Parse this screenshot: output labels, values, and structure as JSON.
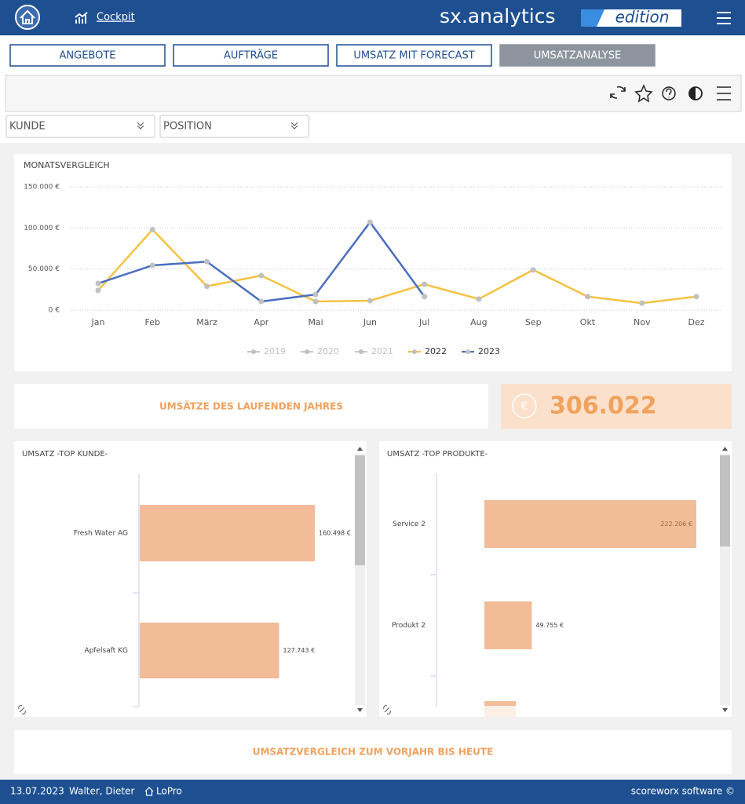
{
  "header": {
    "nav_link": "Cockpit",
    "brand": "sx.analytics",
    "edition": "edition"
  },
  "tabs": [
    "ANGEBOTE",
    "AUFTRÄGE",
    "UMSATZ MIT FORECAST",
    "UMSATZANALYSE"
  ],
  "filters": [
    "KUNDE",
    "POSITION"
  ],
  "monthly_chart": {
    "type": "line",
    "title": "MONATSVERGLEICH",
    "categories": [
      "Jan",
      "Feb",
      "März",
      "Apr",
      "Mai",
      "Jun",
      "Jul",
      "Aug",
      "Sep",
      "Okt",
      "Nov",
      "Dez"
    ],
    "series": [
      {
        "name": "2019",
        "color": "#c8c8c8",
        "values": [
          null,
          null,
          null,
          null,
          null,
          null,
          null,
          null,
          null,
          null,
          null,
          null
        ]
      },
      {
        "name": "2020",
        "color": "#c8c8c8",
        "values": [
          null,
          null,
          null,
          null,
          null,
          null,
          null,
          null,
          null,
          null,
          null,
          null
        ]
      },
      {
        "name": "2021",
        "color": "#c8c8c8",
        "values": [
          null,
          null,
          null,
          null,
          null,
          null,
          null,
          null,
          null,
          null,
          null,
          null
        ]
      },
      {
        "name": "2022",
        "color": "#f5c242",
        "values": [
          24000,
          98000,
          29000,
          42000,
          10500,
          11500,
          31500,
          13500,
          49000,
          16500,
          8500,
          16500
        ]
      },
      {
        "name": "2023",
        "color": "#4a6fc0",
        "values": [
          32500,
          54500,
          59000,
          10500,
          19000,
          107000,
          16500,
          null,
          null,
          null,
          null,
          null
        ]
      }
    ],
    "ylim": [
      0,
      150000
    ],
    "yticks": [
      {
        "value": 0,
        "label": "0 €"
      },
      {
        "value": 50000,
        "label": "50.000 €"
      },
      {
        "value": 100000,
        "label": "100.000 €"
      },
      {
        "value": 150000,
        "label": "150.000 €"
      }
    ],
    "grid": true
  },
  "kpi": {
    "label": "UMSÄTZE DES LAUFENDEN JAHRES",
    "icon": "€",
    "value": "306.022"
  },
  "customer_chart": {
    "type": "bar",
    "title": "UMSATZ -TOP KUNDE-",
    "categories": [
      "Fresh Water AG",
      "Apfelsaft KG"
    ],
    "values": [
      160498,
      127743
    ],
    "value_labels": [
      "160.498 €",
      "127.743 €"
    ],
    "color": "#f2bc98"
  },
  "product_chart": {
    "type": "bar",
    "title": "UMSATZ -TOP PRODUKTE-",
    "categories": [
      "Service 2",
      "Produkt 2"
    ],
    "values": [
      222206,
      49755
    ],
    "value_labels": [
      "222.206 €",
      "49.755 €"
    ],
    "color": "#f2bc98"
  },
  "comparison": {
    "title": "UMSATZVERGLEICH ZUM VORJAHR BIS HEUTE"
  },
  "footer": {
    "date": "13.07.2023",
    "user": "Walter, Dieter",
    "location": "LoPro",
    "vendor": "scoreworx software ©"
  }
}
